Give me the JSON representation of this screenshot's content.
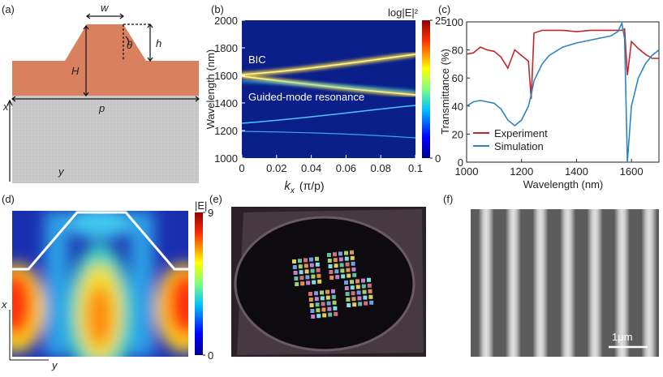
{
  "panel_labels": [
    "(a)",
    "(b)",
    "(c)",
    "(d)",
    "(e)",
    "(f)"
  ],
  "schematic": {
    "width": "w",
    "angle": "θ",
    "height": "h",
    "total_height": "H",
    "period": "p",
    "axis_x": "x",
    "axis_y": "y"
  },
  "chart_data": [
    {
      "type": "heatmap",
      "xlabel": "k",
      "xlabel_sub": "x",
      "xlabel_unit": "(π/p)",
      "ylabel": "Wavelength (nm)",
      "xlim": [
        0,
        0.1
      ],
      "xticks": [
        0,
        0.02,
        0.04,
        0.06,
        0.08,
        0.1
      ],
      "ylim": [
        1000,
        2000
      ],
      "yticks": [
        1000,
        1200,
        1400,
        1600,
        1800,
        2000
      ],
      "colorbar_title": "log|E|²",
      "colorbar_lim": [
        0,
        25
      ],
      "colorbar_ticks": [
        0,
        25
      ],
      "annotations": [
        "BIC",
        "Guided-mode resonance"
      ]
    },
    {
      "type": "line",
      "xlabel": "Wavelength (nm)",
      "ylabel": "Transmittance (%)",
      "x": [
        1000,
        1025,
        1050,
        1075,
        1100,
        1125,
        1150,
        1175,
        1200,
        1225,
        1235,
        1245,
        1275,
        1300,
        1350,
        1400,
        1450,
        1500,
        1525,
        1550,
        1565,
        1575,
        1585,
        1600,
        1625,
        1650,
        1675,
        1700
      ],
      "xlim": [
        1000,
        1700
      ],
      "xticks": [
        1000,
        1200,
        1400,
        1600
      ],
      "ylim": [
        0,
        100
      ],
      "yticks": [
        0,
        20,
        40,
        60,
        80,
        100
      ],
      "legend": "lower left",
      "series": [
        {
          "name": "Experiment",
          "color": "#c1272d",
          "values": [
            77,
            78,
            82,
            80,
            79,
            75,
            67,
            80,
            76,
            72,
            45,
            92,
            94,
            94,
            94,
            93,
            94,
            94,
            94,
            94,
            94,
            95,
            62,
            86,
            81,
            77,
            74,
            74
          ]
        },
        {
          "name": "Simulation",
          "color": "#2b86bf",
          "values": [
            40,
            43,
            44,
            43,
            42,
            38,
            30,
            26,
            30,
            40,
            48,
            58,
            70,
            76,
            82,
            85,
            87,
            89,
            90,
            93,
            99,
            88,
            0,
            40,
            60,
            70,
            76,
            80
          ]
        }
      ]
    }
  ],
  "field_map": {
    "colorbar_title": "|E|",
    "colorbar_ticks": [
      0,
      9
    ],
    "axis_x": "x",
    "axis_y": "y"
  },
  "sem": {
    "scale_bar": "1μm"
  }
}
